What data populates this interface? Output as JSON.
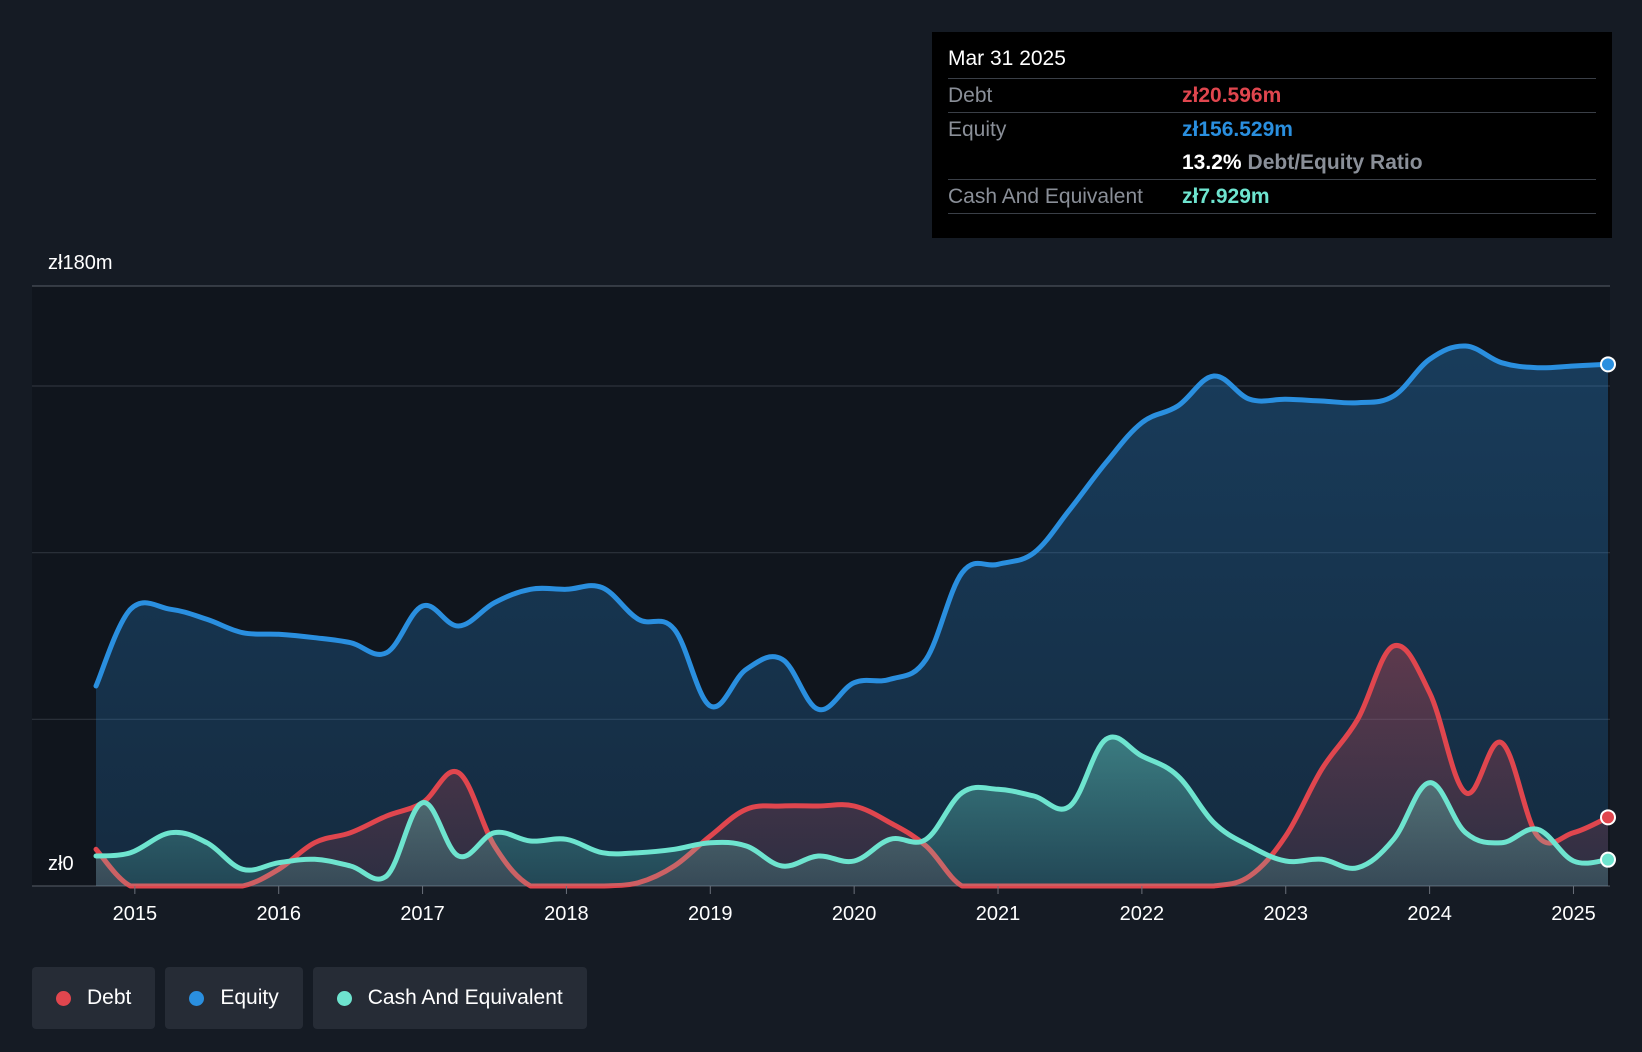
{
  "colors": {
    "debt": "#e0464e",
    "equity": "#2a8fdf",
    "cash": "#6ee4cf",
    "grid": "#2d333d",
    "plot_bg": "#10151d"
  },
  "tooltip": {
    "date": "Mar 31 2025",
    "debt_label": "Debt",
    "debt_value": "zł20.596m",
    "equity_label": "Equity",
    "equity_value": "zł156.529m",
    "ratio_pct": "13.2%",
    "ratio_label": "Debt/Equity Ratio",
    "cash_label": "Cash And Equivalent",
    "cash_value": "zł7.929m"
  },
  "legend": [
    {
      "label": "Debt",
      "color_key": "debt"
    },
    {
      "label": "Equity",
      "color_key": "equity"
    },
    {
      "label": "Cash And Equivalent",
      "color_key": "cash"
    }
  ],
  "chart_data": {
    "type": "area",
    "y_top_label": "zł180m",
    "y_zero_label": "zł0",
    "ylim": [
      0,
      180
    ],
    "xlim": [
      2014.73,
      2025.24
    ],
    "x_ticks": [
      2015,
      2016,
      2017,
      2018,
      2019,
      2020,
      2021,
      2022,
      2023,
      2024,
      2025
    ],
    "x_tick_labels": [
      "2015",
      "2016",
      "2017",
      "2018",
      "2019",
      "2020",
      "2021",
      "2022",
      "2023",
      "2024",
      "2025"
    ],
    "series": [
      {
        "name": "Equity",
        "color_key": "equity",
        "points": [
          [
            2014.73,
            60
          ],
          [
            2014.97,
            83
          ],
          [
            2015.25,
            83
          ],
          [
            2015.5,
            80
          ],
          [
            2015.75,
            76
          ],
          [
            2016.0,
            75.5
          ],
          [
            2016.25,
            74.5
          ],
          [
            2016.5,
            73
          ],
          [
            2016.75,
            70
          ],
          [
            2017.0,
            84
          ],
          [
            2017.25,
            78
          ],
          [
            2017.5,
            85
          ],
          [
            2017.75,
            89
          ],
          [
            2018.0,
            89
          ],
          [
            2018.25,
            89.5
          ],
          [
            2018.5,
            80
          ],
          [
            2018.75,
            77
          ],
          [
            2019.0,
            54
          ],
          [
            2019.25,
            65
          ],
          [
            2019.5,
            68
          ],
          [
            2019.75,
            53
          ],
          [
            2020.0,
            61
          ],
          [
            2020.25,
            62
          ],
          [
            2020.5,
            68
          ],
          [
            2020.75,
            94
          ],
          [
            2021.0,
            96.5
          ],
          [
            2021.25,
            100
          ],
          [
            2021.5,
            113
          ],
          [
            2021.75,
            127
          ],
          [
            2022.0,
            139
          ],
          [
            2022.25,
            144
          ],
          [
            2022.5,
            153
          ],
          [
            2022.75,
            146
          ],
          [
            2023.0,
            146
          ],
          [
            2023.25,
            145.5
          ],
          [
            2023.5,
            145
          ],
          [
            2023.75,
            147
          ],
          [
            2024.0,
            158
          ],
          [
            2024.25,
            162
          ],
          [
            2024.5,
            157
          ],
          [
            2024.75,
            155.5
          ],
          [
            2025.0,
            156
          ],
          [
            2025.24,
            156.5
          ]
        ]
      },
      {
        "name": "Debt",
        "color_key": "debt",
        "points": [
          [
            2014.73,
            11
          ],
          [
            2014.97,
            0
          ],
          [
            2015.25,
            0
          ],
          [
            2015.5,
            0
          ],
          [
            2015.75,
            0
          ],
          [
            2016.0,
            5
          ],
          [
            2016.25,
            13
          ],
          [
            2016.5,
            16
          ],
          [
            2016.75,
            21
          ],
          [
            2017.0,
            25
          ],
          [
            2017.25,
            34
          ],
          [
            2017.5,
            12
          ],
          [
            2017.75,
            0
          ],
          [
            2018.0,
            0
          ],
          [
            2018.25,
            0
          ],
          [
            2018.5,
            1
          ],
          [
            2018.75,
            6
          ],
          [
            2019.0,
            15
          ],
          [
            2019.25,
            23
          ],
          [
            2019.5,
            24
          ],
          [
            2019.75,
            24
          ],
          [
            2020.0,
            24
          ],
          [
            2020.25,
            19
          ],
          [
            2020.5,
            12
          ],
          [
            2020.75,
            0
          ],
          [
            2021.0,
            0
          ],
          [
            2021.25,
            0
          ],
          [
            2021.5,
            0
          ],
          [
            2021.75,
            0
          ],
          [
            2022.0,
            0
          ],
          [
            2022.25,
            0
          ],
          [
            2022.5,
            0
          ],
          [
            2022.75,
            3
          ],
          [
            2023.0,
            15
          ],
          [
            2023.25,
            35
          ],
          [
            2023.5,
            50
          ],
          [
            2023.75,
            72
          ],
          [
            2024.0,
            58
          ],
          [
            2024.25,
            28
          ],
          [
            2024.5,
            43
          ],
          [
            2024.75,
            15
          ],
          [
            2025.0,
            16
          ],
          [
            2025.24,
            20.6
          ]
        ]
      },
      {
        "name": "Cash And Equivalent",
        "color_key": "cash",
        "points": [
          [
            2014.73,
            9
          ],
          [
            2014.97,
            10
          ],
          [
            2015.25,
            16
          ],
          [
            2015.5,
            13
          ],
          [
            2015.75,
            5
          ],
          [
            2016.0,
            7
          ],
          [
            2016.25,
            8
          ],
          [
            2016.5,
            6
          ],
          [
            2016.75,
            3
          ],
          [
            2017.0,
            25
          ],
          [
            2017.25,
            9
          ],
          [
            2017.5,
            16
          ],
          [
            2017.75,
            13.5
          ],
          [
            2018.0,
            14
          ],
          [
            2018.25,
            10
          ],
          [
            2018.5,
            10
          ],
          [
            2018.75,
            11
          ],
          [
            2019.0,
            13
          ],
          [
            2019.25,
            12
          ],
          [
            2019.5,
            6
          ],
          [
            2019.75,
            9
          ],
          [
            2020.0,
            7.5
          ],
          [
            2020.25,
            14
          ],
          [
            2020.5,
            14
          ],
          [
            2020.75,
            28
          ],
          [
            2021.0,
            29
          ],
          [
            2021.25,
            27
          ],
          [
            2021.5,
            24
          ],
          [
            2021.75,
            44
          ],
          [
            2022.0,
            39
          ],
          [
            2022.25,
            33
          ],
          [
            2022.5,
            19
          ],
          [
            2022.75,
            12
          ],
          [
            2023.0,
            7.5
          ],
          [
            2023.25,
            8
          ],
          [
            2023.5,
            5.5
          ],
          [
            2023.75,
            14
          ],
          [
            2024.0,
            31
          ],
          [
            2024.25,
            16
          ],
          [
            2024.5,
            13
          ],
          [
            2024.75,
            17
          ],
          [
            2025.0,
            7.5
          ],
          [
            2025.24,
            7.9
          ]
        ]
      }
    ]
  }
}
